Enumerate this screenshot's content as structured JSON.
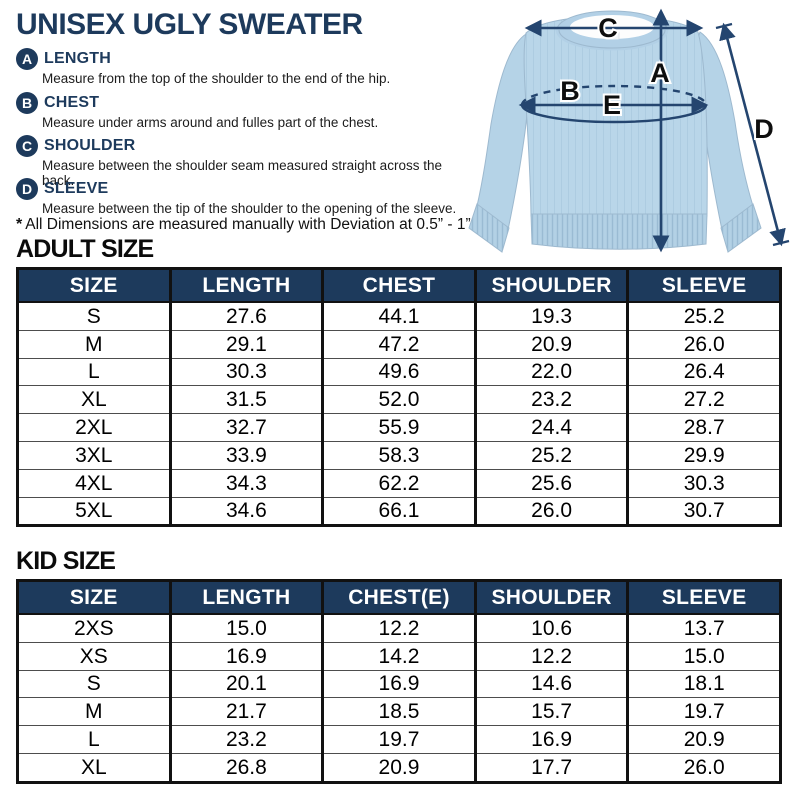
{
  "page": {
    "title": "UNISEX UGLY SWEATER",
    "note_mark": "*",
    "note_text": "All Dimensions are measured manually with Deviation at 0.5” - 1”"
  },
  "legend": {
    "items": [
      {
        "letter": "A",
        "label": "LENGTH",
        "description": "Measure from the top of the shoulder to the end of the hip."
      },
      {
        "letter": "B",
        "label": "CHEST",
        "description": "Measure under arms around and fulles part of the chest."
      },
      {
        "letter": "C",
        "label": "SHOULDER",
        "description": "Measure between the shoulder seam measured straight across the back."
      },
      {
        "letter": "D",
        "label": "SLEEVE",
        "description": "Measure between the tip of the shoulder to the opening of the sleeve."
      }
    ]
  },
  "diagram": {
    "labels": [
      "A",
      "B",
      "C",
      "D",
      "E"
    ]
  },
  "adult": {
    "heading": "ADULT SIZE",
    "table": {
      "headers": [
        "SIZE",
        "LENGTH",
        "CHEST",
        "SHOULDER",
        "SLEEVE"
      ],
      "rows": [
        [
          "S",
          "27.6",
          "44.1",
          "19.3",
          "25.2"
        ],
        [
          "M",
          "29.1",
          "47.2",
          "20.9",
          "26.0"
        ],
        [
          "L",
          "30.3",
          "49.6",
          "22.0",
          "26.4"
        ],
        [
          "XL",
          "31.5",
          "52.0",
          "23.2",
          "27.2"
        ],
        [
          "2XL",
          "32.7",
          "55.9",
          "24.4",
          "28.7"
        ],
        [
          "3XL",
          "33.9",
          "58.3",
          "25.2",
          "29.9"
        ],
        [
          "4XL",
          "34.3",
          "62.2",
          "25.6",
          "30.3"
        ],
        [
          "5XL",
          "34.6",
          "66.1",
          "26.0",
          "30.7"
        ]
      ]
    }
  },
  "kid": {
    "heading": "KID SIZE",
    "table": {
      "headers": [
        "SIZE",
        "LENGTH",
        "CHEST(E)",
        "SHOULDER",
        "SLEEVE"
      ],
      "rows": [
        [
          "2XS",
          "15.0",
          "12.2",
          "10.6",
          "13.7"
        ],
        [
          "XS",
          "16.9",
          "14.2",
          "12.2",
          "15.0"
        ],
        [
          "S",
          "20.1",
          "16.9",
          "14.6",
          "18.1"
        ],
        [
          "M",
          "21.7",
          "18.5",
          "15.7",
          "19.7"
        ],
        [
          "L",
          "23.2",
          "19.7",
          "16.9",
          "20.9"
        ],
        [
          "XL",
          "26.8",
          "20.9",
          "17.7",
          "26.0"
        ]
      ]
    }
  },
  "colors": {
    "navy": "#1d3a5c",
    "arrow_navy": "#24456f",
    "sweater_blue": "#b9d6e9",
    "table_header_bg": "#1d3a5c",
    "table_border": "#111111"
  }
}
